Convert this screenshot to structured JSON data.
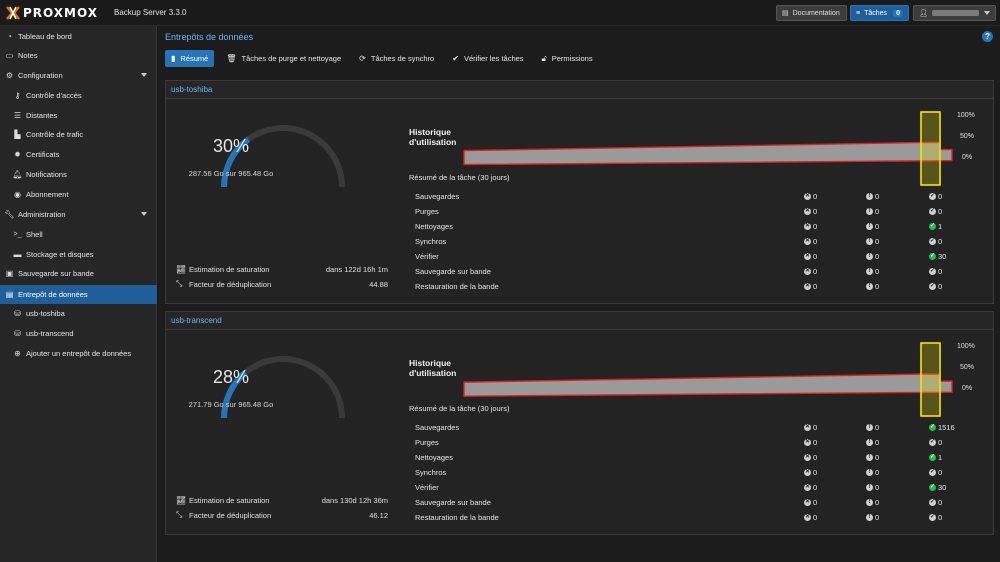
{
  "header": {
    "brand": "PROXMOX",
    "product": "Backup Server 3.3.0",
    "doc_button": "Documentation",
    "tasks_button": "Tâches",
    "tasks_count": "0"
  },
  "sidebar": {
    "items": [
      {
        "label": "Tableau de bord",
        "icon": "dashboard-icon"
      },
      {
        "label": "Notes",
        "icon": "notes-icon"
      },
      {
        "label": "Configuration",
        "icon": "gears-icon"
      },
      {
        "label": "Contrôle d'accès",
        "icon": "key-icon"
      },
      {
        "label": "Distantes",
        "icon": "server-icon"
      },
      {
        "label": "Contrôle de trafic",
        "icon": "bar-chart-icon"
      },
      {
        "label": "Certificats",
        "icon": "certificate-icon"
      },
      {
        "label": "Notifications",
        "icon": "bell-icon"
      },
      {
        "label": "Abonnement",
        "icon": "support-icon"
      },
      {
        "label": "Administration",
        "icon": "wrench-icon"
      },
      {
        "label": "Shell",
        "icon": "terminal-icon"
      },
      {
        "label": "Stockage et disques",
        "icon": "hdd-icon"
      },
      {
        "label": "Sauvegarde sur bande",
        "icon": "tape-icon"
      },
      {
        "label": "Entrepôt de données",
        "icon": "archive-icon"
      },
      {
        "label": "usb-toshiba",
        "icon": "database-icon"
      },
      {
        "label": "usb-transcend",
        "icon": "database-icon"
      },
      {
        "label": "Ajouter un entrepôt de données",
        "icon": "plus-circle-icon"
      }
    ]
  },
  "main": {
    "title": "Entrepôts de données",
    "tabs": [
      "Résumé",
      "Tâches de purge et nettoyage",
      "Tâches de synchro",
      "Vérifier les tâches",
      "Permissions"
    ]
  },
  "labels": {
    "history": "Historique d'utilisation",
    "task_summary": "Résumé de la tâche (30 jours)",
    "saturation": "Estimation de saturation",
    "dedup": "Facteur de déduplication",
    "y_100": "100%",
    "y_50": "50%",
    "y_0": "0%"
  },
  "task_types": [
    "Sauvegardes",
    "Purges",
    "Nettoyages",
    "Synchros",
    "Vérifier",
    "Sauvegarde sur bande",
    "Restauration de la bande"
  ],
  "stores": [
    {
      "name": "usb-toshiba",
      "usage_pct": "30%",
      "usage_fraction": 0.3,
      "usage_text": "287.56 Go sur 965.48 Go",
      "saturation": "dans 122d 16h 1m",
      "dedup": "44.88",
      "history_level": 0.3,
      "tasks": [
        [
          "0",
          "0",
          "0"
        ],
        [
          "0",
          "0",
          "0"
        ],
        [
          "0",
          "0",
          "1"
        ],
        [
          "0",
          "0",
          "0"
        ],
        [
          "0",
          "0",
          "30"
        ],
        [
          "0",
          "0",
          "0"
        ],
        [
          "0",
          "0",
          "0"
        ]
      ]
    },
    {
      "name": "usb-transcend",
      "usage_pct": "28%",
      "usage_fraction": 0.28,
      "usage_text": "271.79 Go sur 965.48 Go",
      "saturation": "dans 130d 12h 36m",
      "dedup": "46.12",
      "history_level": 0.28,
      "tasks": [
        [
          "0",
          "0",
          "1516"
        ],
        [
          "0",
          "0",
          "0"
        ],
        [
          "0",
          "0",
          "1"
        ],
        [
          "0",
          "0",
          "0"
        ],
        [
          "0",
          "0",
          "30"
        ],
        [
          "0",
          "0",
          "0"
        ],
        [
          "0",
          "0",
          "0"
        ]
      ]
    }
  ],
  "colors": {
    "accent": "#2774b5",
    "link": "#6db4f2",
    "gauge_track": "#3a3a3a",
    "history_fill": "#9a9a9a",
    "history_outline": "#e02020",
    "highlight": "#f2e600",
    "ok": "#21bf4b"
  }
}
